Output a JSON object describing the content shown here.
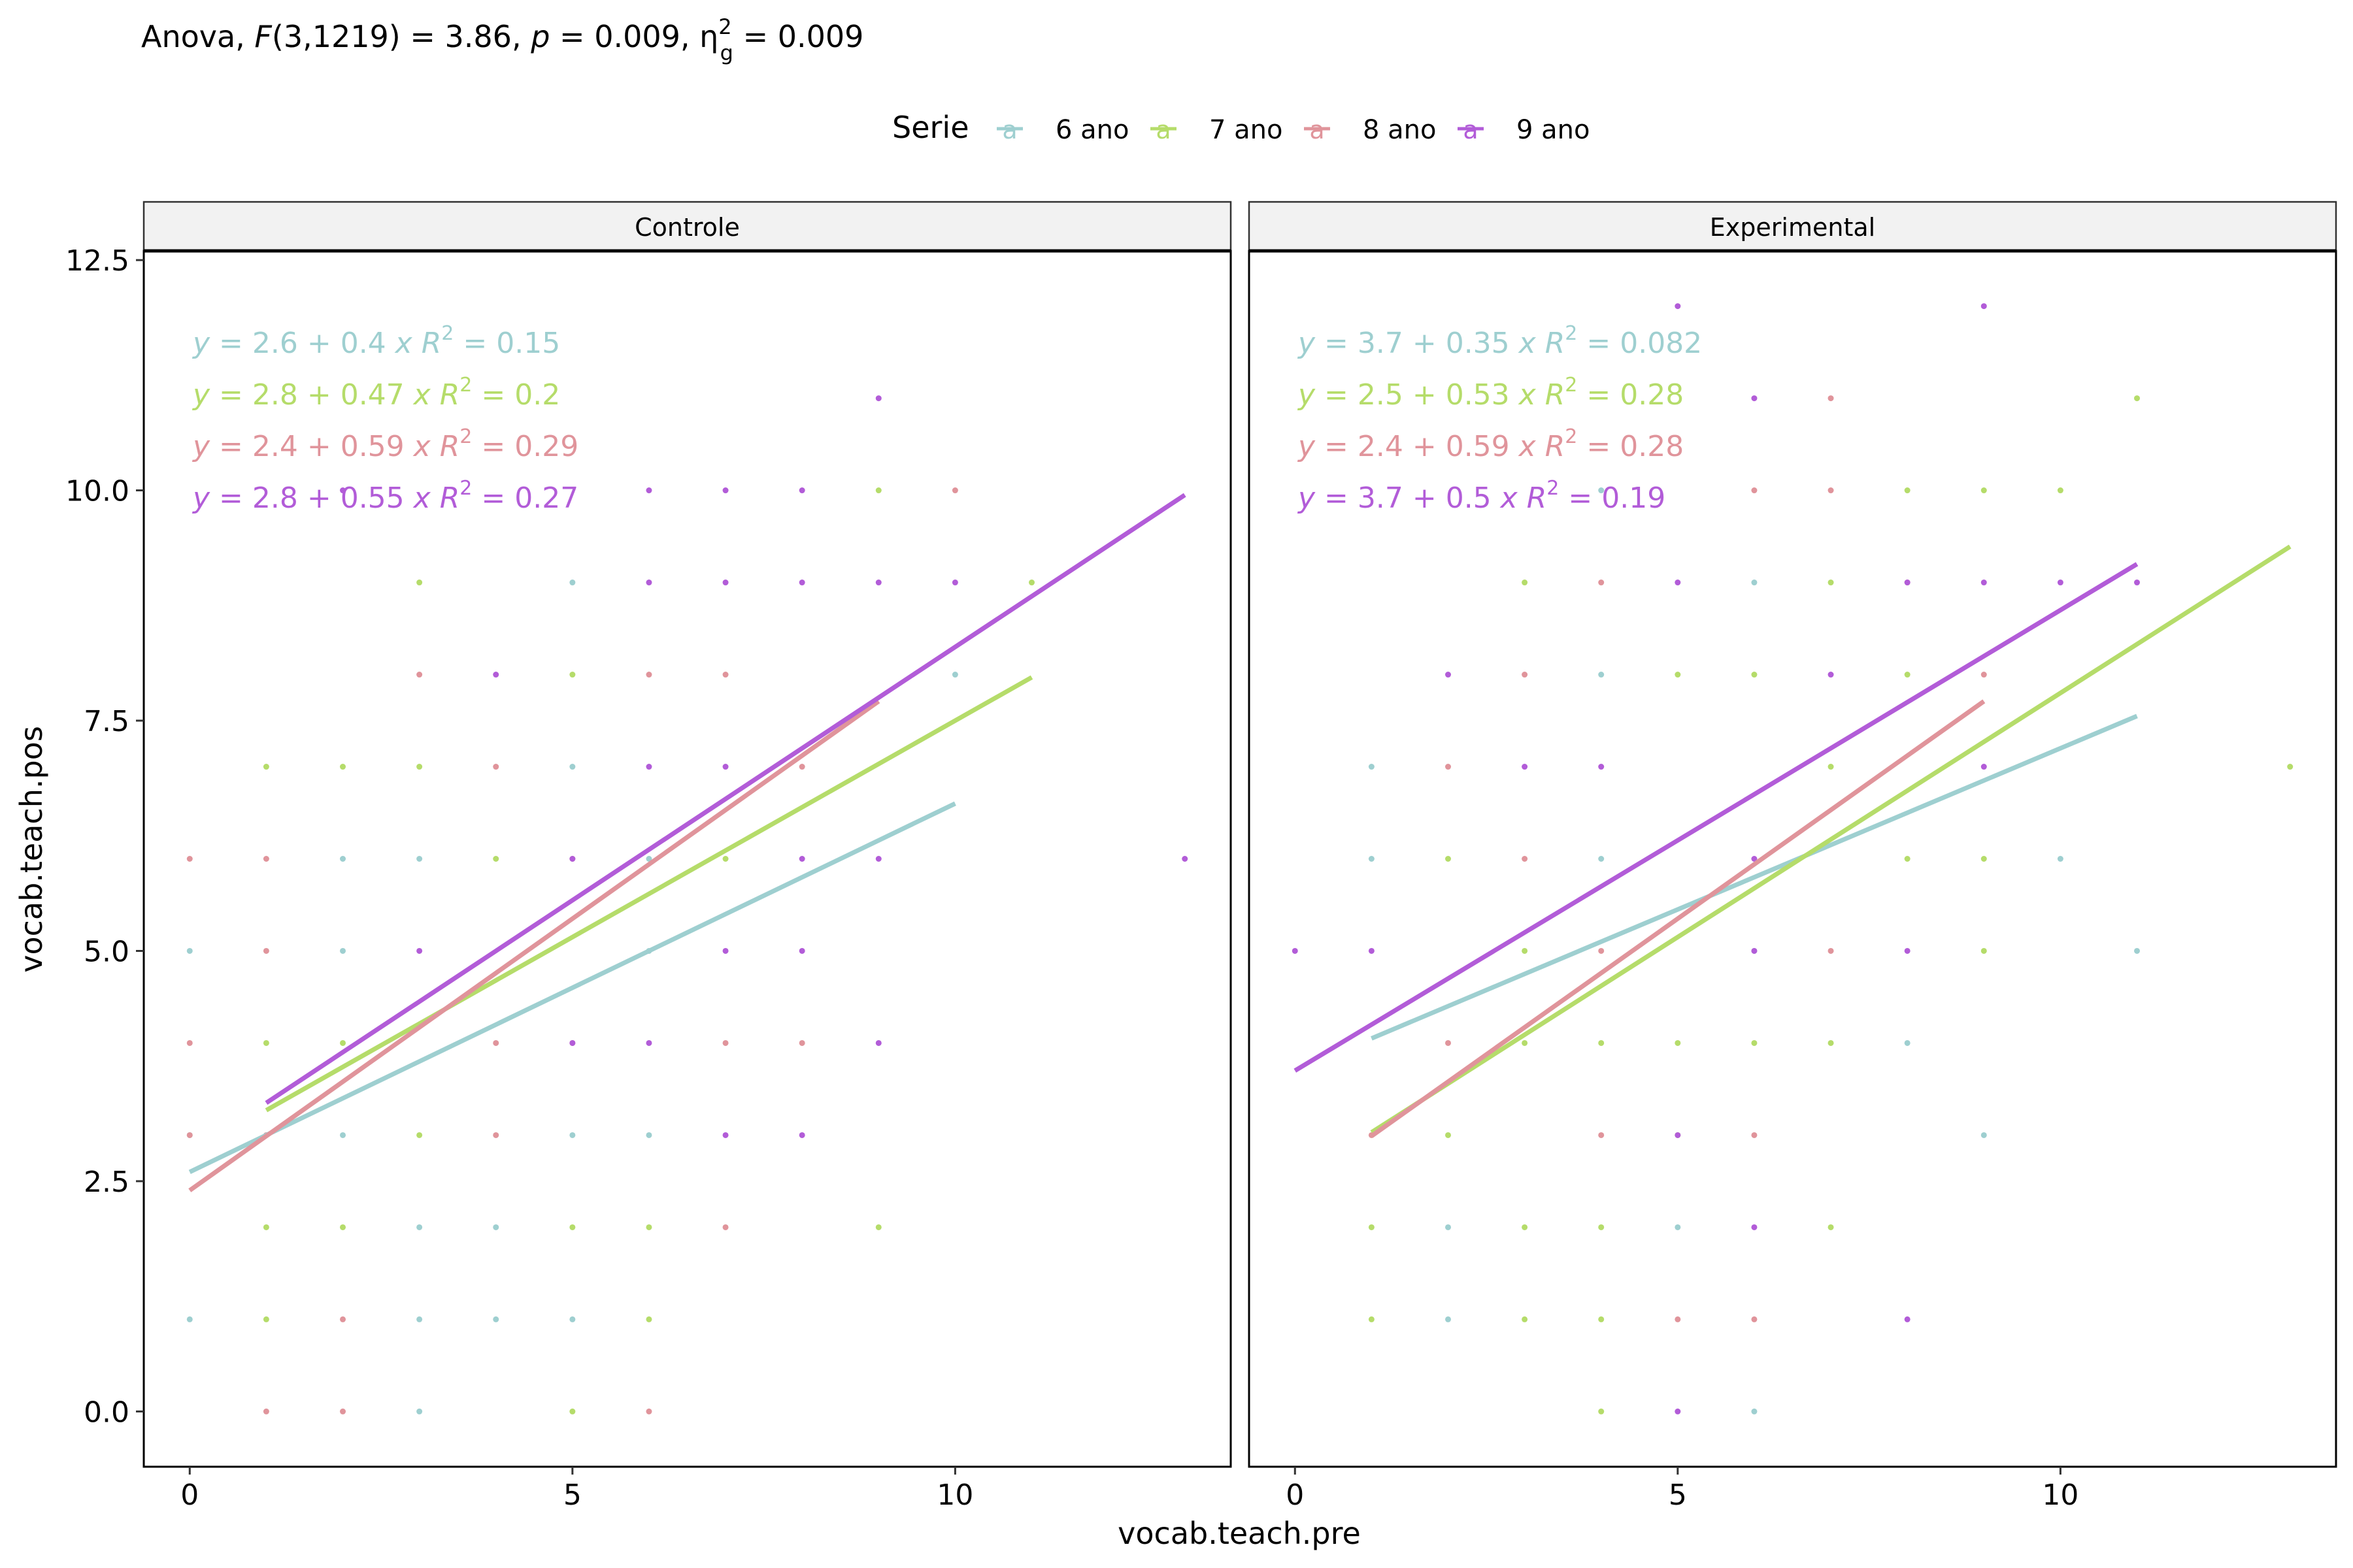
{
  "subtitle": {
    "prefix": "Anova, ",
    "f_symbol": "F",
    "f_args": "(3,1219) = 3.86, ",
    "p_symbol": "p",
    "p_value": " = 0.009, η",
    "eta_sup": "2",
    "eta_sub": "g",
    "eta_value": " = 0.009"
  },
  "legend": {
    "title": "Serie",
    "key_glyph": "a",
    "position": "top"
  },
  "colors": {
    "6 ano": "#9ECFD0",
    "7 ano": "#B5DC6A",
    "8 ano": "#E0949B",
    "9 ano": "#B25CD8",
    "strip_bg": "#F2F2F2"
  },
  "chart_data": {
    "type": "scatter",
    "xlabel": "vocab.teach.pre",
    "ylabel": "vocab.teach.pos",
    "xlim": [
      -0.6,
      13.6
    ],
    "ylim": [
      -0.6,
      12.6
    ],
    "x_ticks": [
      0,
      5,
      10
    ],
    "y_ticks": [
      0.0,
      2.5,
      5.0,
      7.5,
      10.0,
      12.5
    ],
    "y_tick_labels": [
      "0.0",
      "2.5",
      "5.0",
      "7.5",
      "10.0",
      "12.5"
    ],
    "grid": false,
    "series_names": [
      "6 ano",
      "7 ano",
      "8 ano",
      "9 ano"
    ],
    "panels": [
      {
        "title": "Controle",
        "series": [
          {
            "name": "6 ano",
            "points": [
              [
                0,
                5
              ],
              [
                0,
                1
              ],
              [
                0,
                3
              ],
              [
                2,
                6
              ],
              [
                2,
                5
              ],
              [
                2,
                3
              ],
              [
                3,
                6
              ],
              [
                3,
                2
              ],
              [
                3,
                1
              ],
              [
                3,
                0
              ],
              [
                4,
                2
              ],
              [
                4,
                1
              ],
              [
                5,
                9
              ],
              [
                5,
                7
              ],
              [
                5,
                3
              ],
              [
                5,
                1
              ],
              [
                6,
                6
              ],
              [
                6,
                5
              ],
              [
                6,
                3
              ],
              [
                10,
                8
              ]
            ],
            "fit": {
              "x": [
                0,
                10
              ],
              "intercept": 2.6,
              "slope": 0.4
            },
            "eq": {
              "a": "2.6",
              "b": "0.4",
              "r2": "0.15"
            }
          },
          {
            "name": "7 ano",
            "points": [
              [
                1,
                7
              ],
              [
                1,
                4
              ],
              [
                1,
                2
              ],
              [
                1,
                1
              ],
              [
                2,
                7
              ],
              [
                2,
                4
              ],
              [
                2,
                2
              ],
              [
                3,
                9
              ],
              [
                3,
                7
              ],
              [
                3,
                3
              ],
              [
                4,
                6
              ],
              [
                5,
                8
              ],
              [
                5,
                2
              ],
              [
                5,
                0
              ],
              [
                6,
                2
              ],
              [
                6,
                1
              ],
              [
                7,
                6
              ],
              [
                9,
                10
              ],
              [
                9,
                2
              ],
              [
                11,
                9
              ]
            ],
            "fit": {
              "x": [
                1,
                11
              ],
              "intercept": 2.8,
              "slope": 0.47
            },
            "eq": {
              "a": "2.8",
              "b": "0.47",
              "r2": "0.2"
            }
          },
          {
            "name": "8 ano",
            "points": [
              [
                0,
                6
              ],
              [
                0,
                4
              ],
              [
                0,
                3
              ],
              [
                1,
                6
              ],
              [
                1,
                5
              ],
              [
                1,
                3
              ],
              [
                1,
                0
              ],
              [
                2,
                1
              ],
              [
                2,
                0
              ],
              [
                3,
                8
              ],
              [
                4,
                7
              ],
              [
                4,
                4
              ],
              [
                4,
                3
              ],
              [
                5,
                6
              ],
              [
                5,
                4
              ],
              [
                6,
                8
              ],
              [
                6,
                0
              ],
              [
                7,
                8
              ],
              [
                7,
                4
              ],
              [
                7,
                2
              ],
              [
                8,
                7
              ],
              [
                8,
                4
              ],
              [
                10,
                10
              ]
            ],
            "fit": {
              "x": [
                0,
                9
              ],
              "intercept": 2.4,
              "slope": 0.59
            },
            "eq": {
              "a": "2.4",
              "b": "0.59",
              "r2": "0.29"
            }
          },
          {
            "name": "9 ano",
            "points": [
              [
                2,
                10
              ],
              [
                3,
                5
              ],
              [
                4,
                8
              ],
              [
                5,
                6
              ],
              [
                5,
                4
              ],
              [
                6,
                10
              ],
              [
                6,
                9
              ],
              [
                6,
                7
              ],
              [
                6,
                4
              ],
              [
                7,
                10
              ],
              [
                7,
                9
              ],
              [
                7,
                7
              ],
              [
                7,
                5
              ],
              [
                7,
                3
              ],
              [
                8,
                10
              ],
              [
                8,
                9
              ],
              [
                8,
                6
              ],
              [
                8,
                5
              ],
              [
                8,
                3
              ],
              [
                9,
                11
              ],
              [
                9,
                9
              ],
              [
                9,
                6
              ],
              [
                9,
                4
              ],
              [
                10,
                9
              ],
              [
                13,
                6
              ]
            ],
            "fit": {
              "x": [
                1,
                13
              ],
              "intercept": 2.8,
              "slope": 0.55
            },
            "eq": {
              "a": "2.8",
              "b": "0.55",
              "r2": "0.27"
            }
          }
        ]
      },
      {
        "title": "Experimental",
        "series": [
          {
            "name": "6 ano",
            "points": [
              [
                1,
                7
              ],
              [
                1,
                6
              ],
              [
                2,
                2
              ],
              [
                2,
                1
              ],
              [
                4,
                8
              ],
              [
                4,
                6
              ],
              [
                4,
                10
              ],
              [
                5,
                2
              ],
              [
                6,
                9
              ],
              [
                6,
                5
              ],
              [
                6,
                0
              ],
              [
                8,
                4
              ],
              [
                9,
                3
              ],
              [
                10,
                6
              ],
              [
                11,
                5
              ]
            ],
            "fit": {
              "x": [
                1,
                11
              ],
              "intercept": 3.7,
              "slope": 0.35
            },
            "eq": {
              "a": "3.7",
              "b": "0.35",
              "r2": "0.082"
            }
          },
          {
            "name": "7 ano",
            "points": [
              [
                1,
                2
              ],
              [
                1,
                1
              ],
              [
                2,
                6
              ],
              [
                2,
                3
              ],
              [
                3,
                9
              ],
              [
                3,
                5
              ],
              [
                3,
                4
              ],
              [
                3,
                2
              ],
              [
                3,
                1
              ],
              [
                4,
                4
              ],
              [
                4,
                2
              ],
              [
                4,
                1
              ],
              [
                4,
                0
              ],
              [
                5,
                8
              ],
              [
                5,
                4
              ],
              [
                5,
                3
              ],
              [
                6,
                8
              ],
              [
                6,
                4
              ],
              [
                7,
                9
              ],
              [
                7,
                7
              ],
              [
                7,
                4
              ],
              [
                7,
                2
              ],
              [
                8,
                10
              ],
              [
                8,
                8
              ],
              [
                8,
                6
              ],
              [
                9,
                10
              ],
              [
                9,
                6
              ],
              [
                9,
                5
              ],
              [
                10,
                10
              ],
              [
                11,
                11
              ],
              [
                13,
                7
              ]
            ],
            "fit": {
              "x": [
                1,
                13
              ],
              "intercept": 2.5,
              "slope": 0.53
            },
            "eq": {
              "a": "2.5",
              "b": "0.53",
              "r2": "0.28"
            }
          },
          {
            "name": "8 ano",
            "points": [
              [
                1,
                3
              ],
              [
                2,
                7
              ],
              [
                2,
                4
              ],
              [
                3,
                8
              ],
              [
                3,
                6
              ],
              [
                4,
                9
              ],
              [
                4,
                5
              ],
              [
                4,
                3
              ],
              [
                5,
                1
              ],
              [
                6,
                10
              ],
              [
                6,
                3
              ],
              [
                6,
                1
              ],
              [
                7,
                11
              ],
              [
                7,
                10
              ],
              [
                7,
                5
              ],
              [
                8,
                9
              ],
              [
                9,
                8
              ]
            ],
            "fit": {
              "x": [
                1,
                9
              ],
              "intercept": 2.4,
              "slope": 0.59
            },
            "eq": {
              "a": "2.4",
              "b": "0.59",
              "r2": "0.28"
            }
          },
          {
            "name": "9 ano",
            "points": [
              [
                0,
                5
              ],
              [
                1,
                5
              ],
              [
                2,
                8
              ],
              [
                3,
                7
              ],
              [
                4,
                7
              ],
              [
                5,
                12
              ],
              [
                5,
                9
              ],
              [
                5,
                3
              ],
              [
                5,
                0
              ],
              [
                6,
                11
              ],
              [
                6,
                6
              ],
              [
                6,
                5
              ],
              [
                6,
                2
              ],
              [
                7,
                8
              ],
              [
                8,
                9
              ],
              [
                8,
                5
              ],
              [
                8,
                1
              ],
              [
                9,
                12
              ],
              [
                9,
                9
              ],
              [
                9,
                7
              ],
              [
                10,
                9
              ],
              [
                11,
                9
              ]
            ],
            "fit": {
              "x": [
                0,
                11
              ],
              "intercept": 3.7,
              "slope": 0.5
            },
            "eq": {
              "a": "3.7",
              "b": "0.5",
              "r2": "0.19"
            }
          }
        ]
      }
    ]
  }
}
